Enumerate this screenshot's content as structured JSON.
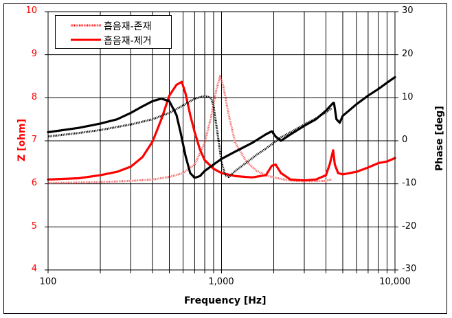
{
  "chart_data": {
    "type": "line",
    "title": "",
    "xlabel": "Frequency [Hz]",
    "ylabel": "Z [ohm]",
    "y2label": "Phase [deg]",
    "xscale": "log",
    "xlim": [
      100,
      10000
    ],
    "ylim": [
      4,
      10
    ],
    "y2lim": [
      -30,
      30
    ],
    "x_ticks": [
      "100",
      "1,000",
      "10,000"
    ],
    "y_ticks": [
      "10",
      "9",
      "8",
      "7",
      "6",
      "5",
      "4"
    ],
    "y2_ticks": [
      "30",
      "20",
      "10",
      "0",
      "-10",
      "-20",
      "-30"
    ],
    "grid": true,
    "legend_position": "upper-left",
    "legend": [
      "흡음재-존재",
      "흡음재-제거"
    ],
    "series": [
      {
        "name": "흡음재-존재",
        "axis": "Z",
        "style": "dotted-thick",
        "color": "#ff0000",
        "x": [
          100,
          150,
          200,
          300,
          400,
          500,
          600,
          700,
          800,
          870,
          930,
          980,
          1020,
          1100,
          1200,
          1400,
          1600,
          1800,
          2000,
          2300,
          2600,
          3000,
          3500,
          4000,
          4300
        ],
        "y": [
          6.02,
          6.03,
          6.04,
          6.07,
          6.1,
          6.16,
          6.25,
          6.45,
          6.95,
          7.55,
          8.15,
          8.5,
          8.3,
          7.6,
          6.95,
          6.5,
          6.3,
          6.2,
          6.15,
          6.1,
          6.07,
          6.06,
          6.06,
          6.07,
          6.1
        ]
      },
      {
        "name": "흡음재-제거",
        "axis": "Z",
        "style": "solid-thick",
        "color": "#ff0000",
        "x": [
          100,
          150,
          200,
          250,
          300,
          350,
          400,
          450,
          500,
          550,
          590,
          620,
          660,
          700,
          750,
          800,
          900,
          1000,
          1200,
          1500,
          1800,
          1950,
          2050,
          2200,
          2500,
          3000,
          3500,
          4000,
          4200,
          4400,
          4500,
          4700,
          5000,
          6000,
          7000,
          8000,
          9000,
          10000
        ],
        "y": [
          6.1,
          6.13,
          6.2,
          6.28,
          6.4,
          6.62,
          6.98,
          7.5,
          8.05,
          8.3,
          8.37,
          8.1,
          7.6,
          7.2,
          6.8,
          6.55,
          6.35,
          6.25,
          6.18,
          6.15,
          6.2,
          6.42,
          6.45,
          6.25,
          6.1,
          6.08,
          6.1,
          6.2,
          6.45,
          6.78,
          6.45,
          6.25,
          6.22,
          6.28,
          6.38,
          6.48,
          6.52,
          6.6
        ]
      },
      {
        "name": "흡음재-존재 (phase)",
        "axis": "Phase",
        "style": "dotted-thick",
        "color": "#000000",
        "x": [
          100,
          150,
          200,
          300,
          400,
          500,
          600,
          700,
          800,
          870,
          900,
          950,
          1000,
          1050,
          1100,
          1200,
          1400,
          1600,
          1800,
          2000,
          2200,
          2500,
          3000,
          3500,
          4000,
          4300
        ],
        "y": [
          1.0,
          1.8,
          2.5,
          3.8,
          5.0,
          6.5,
          8.2,
          9.8,
          10.4,
          10.0,
          8.0,
          1.5,
          -5.0,
          -8.0,
          -8.4,
          -7.0,
          -5.0,
          -3.2,
          -1.8,
          -0.5,
          0.8,
          2.0,
          3.8,
          5.2,
          6.6,
          7.5
        ]
      },
      {
        "name": "흡음재-제거 (phase)",
        "axis": "Phase",
        "style": "solid-thick",
        "color": "#000000",
        "x": [
          100,
          150,
          200,
          250,
          300,
          350,
          400,
          450,
          500,
          550,
          580,
          620,
          660,
          700,
          750,
          800,
          900,
          1000,
          1200,
          1500,
          1800,
          1950,
          2050,
          2200,
          2500,
          3000,
          3500,
          4000,
          4400,
          4450,
          4600,
          4800,
          5000,
          6000,
          7000,
          8000,
          9000,
          10000
        ],
        "y": [
          2.0,
          3.0,
          4.0,
          5.0,
          6.5,
          8.0,
          9.2,
          9.8,
          9.2,
          6.0,
          2.0,
          -3.5,
          -7.5,
          -8.6,
          -8.2,
          -7.0,
          -5.5,
          -4.2,
          -2.5,
          -0.5,
          1.5,
          2.2,
          1.0,
          0.0,
          1.5,
          3.5,
          5.0,
          7.0,
          8.8,
          8.8,
          5.0,
          4.2,
          5.8,
          8.5,
          10.5,
          12.0,
          13.5,
          14.8
        ]
      }
    ]
  },
  "legend": {
    "item1_label": "흡음재-존재",
    "item2_label": "흡음재-제거"
  },
  "axes": {
    "x_title": "Frequency [Hz]",
    "y_left_title": "Z [ohm]",
    "y_right_title": "Phase [deg]",
    "y_left_color": "#ff0000",
    "y_right_color": "#000000"
  },
  "ticks": {
    "left": [
      "10",
      "9",
      "8",
      "7",
      "6",
      "5",
      "4"
    ],
    "right": [
      "30",
      "20",
      "10",
      "0",
      "-10",
      "-20",
      "-30"
    ],
    "x": [
      "100",
      "1,000",
      "10,000"
    ]
  }
}
